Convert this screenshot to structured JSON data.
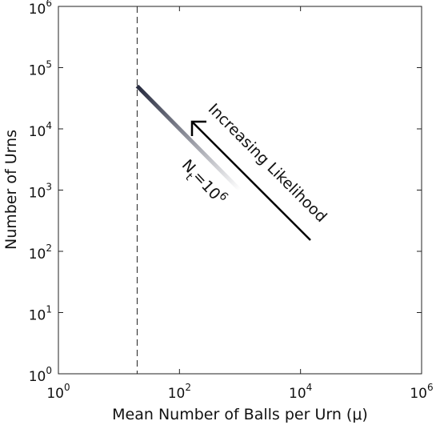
{
  "chart_data": {
    "type": "line",
    "xlabel": "Mean Number of Balls per Urn (μ)",
    "ylabel": "Number of Urns",
    "xscale": "log",
    "yscale": "log",
    "xlim": [
      1,
      1000000
    ],
    "ylim": [
      1,
      1000000
    ],
    "xticks": [
      {
        "value": 1,
        "label": "10",
        "exponent": "0"
      },
      {
        "value": 100,
        "label": "10",
        "exponent": "2"
      },
      {
        "value": 10000,
        "label": "10",
        "exponent": "4"
      },
      {
        "value": 1000000,
        "label": "10",
        "exponent": "6"
      }
    ],
    "yticks": [
      {
        "value": 1,
        "label": "10",
        "exponent": "0"
      },
      {
        "value": 10,
        "label": "10",
        "exponent": "1"
      },
      {
        "value": 100,
        "label": "10",
        "exponent": "2"
      },
      {
        "value": 1000,
        "label": "10",
        "exponent": "3"
      },
      {
        "value": 10000,
        "label": "10",
        "exponent": "4"
      },
      {
        "value": 100000,
        "label": "10",
        "exponent": "5"
      },
      {
        "value": 1000000,
        "label": "10",
        "exponent": "6"
      }
    ],
    "reference_x": 20,
    "series": [
      {
        "x": [
          20,
          1000
        ],
        "values": [
          50000,
          1000
        ],
        "colors": [
          "#262a3e",
          "#ffffff"
        ]
      }
    ],
    "annotations": {
      "arrow_text": "Increasing Likelihood",
      "nt": {
        "symbol": "N",
        "subscript": "t",
        "equals": "=10",
        "superscript": "6"
      }
    }
  }
}
